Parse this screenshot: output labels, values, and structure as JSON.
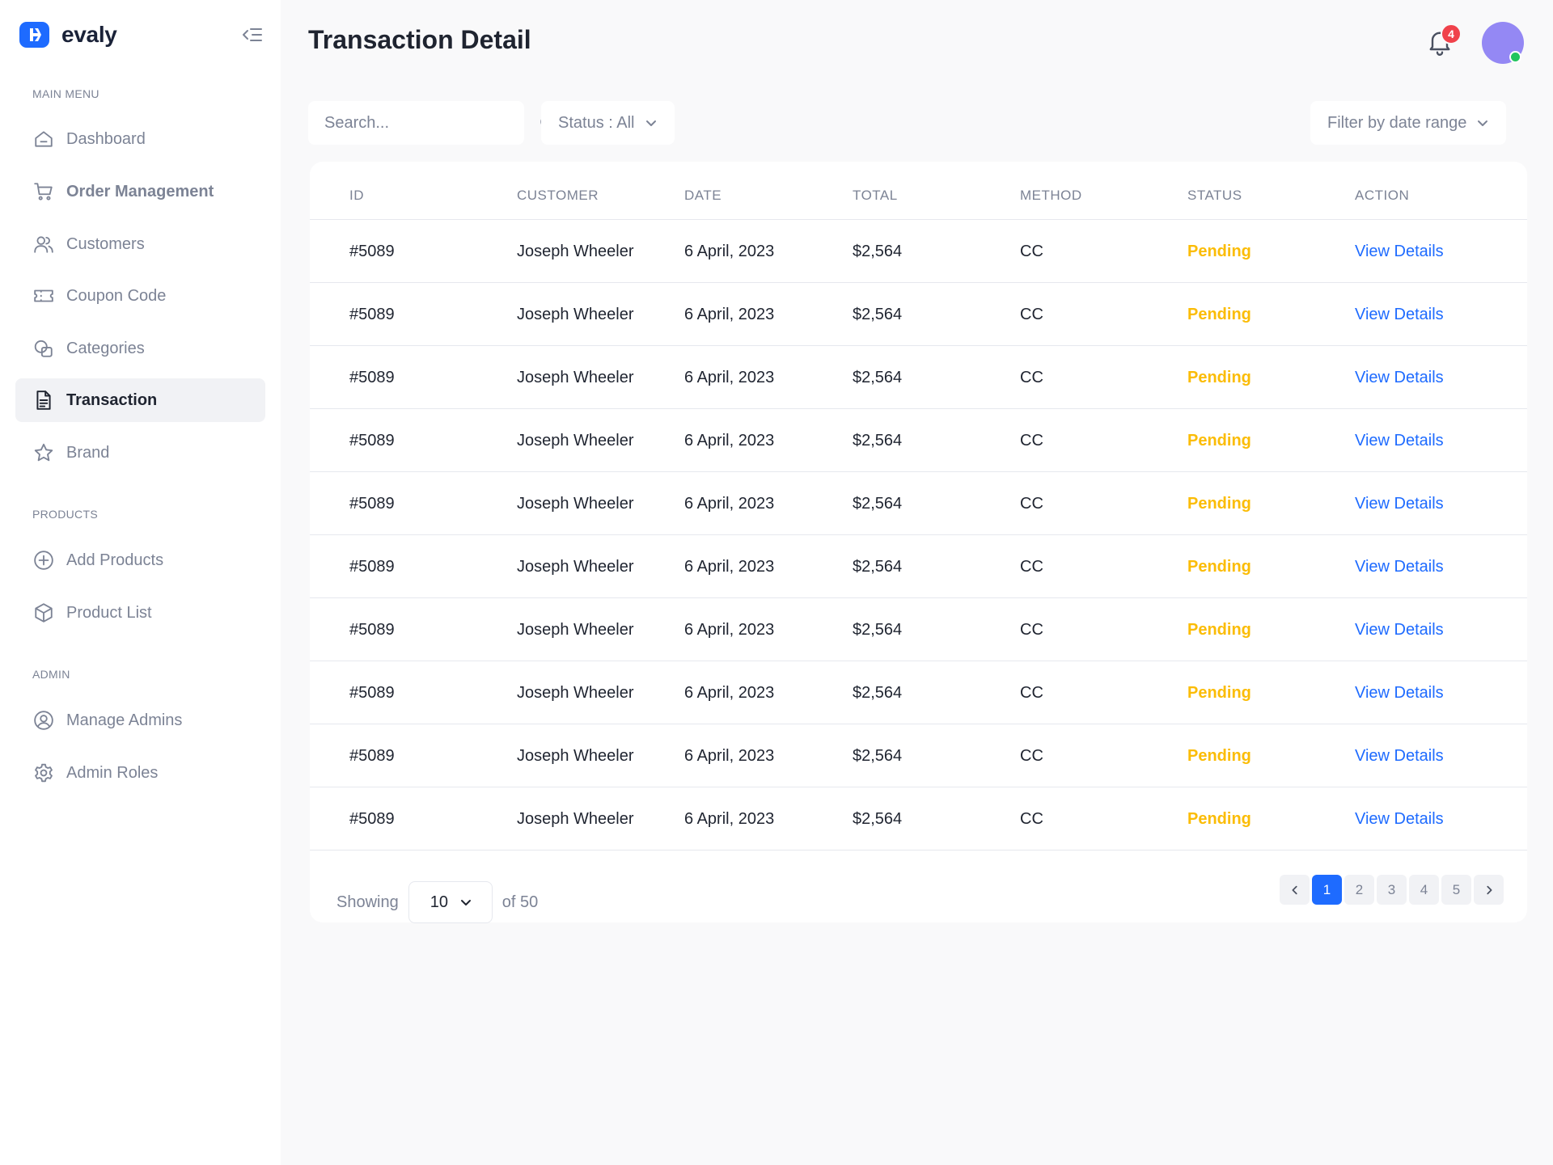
{
  "app": {
    "name": "evaly"
  },
  "sidebar": {
    "sections": [
      {
        "label": "MAIN MENU"
      },
      {
        "label": "PRODUCTS"
      },
      {
        "label": "ADMIN"
      }
    ],
    "items": [
      {
        "label": "Dashboard",
        "icon": "home-icon"
      },
      {
        "label": "Order Management",
        "icon": "cart-icon"
      },
      {
        "label": "Customers",
        "icon": "users-icon"
      },
      {
        "label": "Coupon Code",
        "icon": "ticket-icon"
      },
      {
        "label": "Categories",
        "icon": "categories-icon"
      },
      {
        "label": "Transaction",
        "icon": "document-icon",
        "active": true
      },
      {
        "label": "Brand",
        "icon": "star-icon"
      },
      {
        "label": "Add Products",
        "icon": "plus-circle-icon"
      },
      {
        "label": "Product List",
        "icon": "box-icon"
      },
      {
        "label": "Manage Admins",
        "icon": "user-circle-icon"
      },
      {
        "label": "Admin Roles",
        "icon": "gear-icon"
      }
    ]
  },
  "header": {
    "title": "Transaction Detail",
    "notifications_count": "4"
  },
  "toolbar": {
    "search_placeholder": "Search...",
    "status_filter": "Status : All",
    "date_filter": "Filter by date range"
  },
  "table": {
    "columns": [
      "ID",
      "CUSTOMER",
      "DATE",
      "TOTAL",
      "METHOD",
      "STATUS",
      "ACTION"
    ],
    "rows": [
      {
        "id": "#5089",
        "customer": "Joseph Wheeler",
        "date": "6 April, 2023",
        "total": "$2,564",
        "method": "CC",
        "status": "Pending",
        "action": "View Details"
      },
      {
        "id": "#5089",
        "customer": "Joseph Wheeler",
        "date": "6 April, 2023",
        "total": "$2,564",
        "method": "CC",
        "status": "Pending",
        "action": "View Details"
      },
      {
        "id": "#5089",
        "customer": "Joseph Wheeler",
        "date": "6 April, 2023",
        "total": "$2,564",
        "method": "CC",
        "status": "Pending",
        "action": "View Details"
      },
      {
        "id": "#5089",
        "customer": "Joseph Wheeler",
        "date": "6 April, 2023",
        "total": "$2,564",
        "method": "CC",
        "status": "Pending",
        "action": "View Details"
      },
      {
        "id": "#5089",
        "customer": "Joseph Wheeler",
        "date": "6 April, 2023",
        "total": "$2,564",
        "method": "CC",
        "status": "Pending",
        "action": "View Details"
      },
      {
        "id": "#5089",
        "customer": "Joseph Wheeler",
        "date": "6 April, 2023",
        "total": "$2,564",
        "method": "CC",
        "status": "Pending",
        "action": "View Details"
      },
      {
        "id": "#5089",
        "customer": "Joseph Wheeler",
        "date": "6 April, 2023",
        "total": "$2,564",
        "method": "CC",
        "status": "Pending",
        "action": "View Details"
      },
      {
        "id": "#5089",
        "customer": "Joseph Wheeler",
        "date": "6 April, 2023",
        "total": "$2,564",
        "method": "CC",
        "status": "Pending",
        "action": "View Details"
      },
      {
        "id": "#5089",
        "customer": "Joseph Wheeler",
        "date": "6 April, 2023",
        "total": "$2,564",
        "method": "CC",
        "status": "Pending",
        "action": "View Details"
      },
      {
        "id": "#5089",
        "customer": "Joseph Wheeler",
        "date": "6 April, 2023",
        "total": "$2,564",
        "method": "CC",
        "status": "Pending",
        "action": "View Details"
      }
    ]
  },
  "pagination": {
    "showing_label": "Showing",
    "page_size": "10",
    "of_label": "of 50",
    "pages": [
      "1",
      "2",
      "3",
      "4",
      "5"
    ],
    "current_page": "1"
  },
  "colors": {
    "accent": "#1E6BFF",
    "pending": "#FBBC05",
    "badge": "#F0424B",
    "avatar": "#9488F4",
    "online": "#22C55E"
  }
}
